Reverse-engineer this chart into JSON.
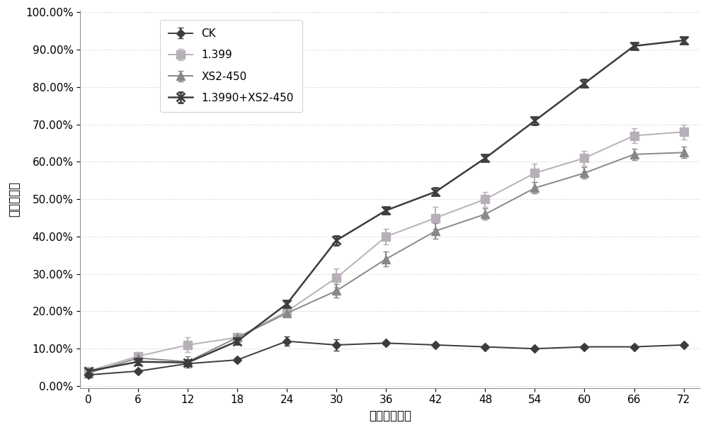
{
  "x": [
    0,
    6,
    12,
    18,
    24,
    30,
    36,
    42,
    48,
    54,
    60,
    66,
    72
  ],
  "CK": [
    0.03,
    0.04,
    0.06,
    0.07,
    0.12,
    0.11,
    0.115,
    0.11,
    0.105,
    0.1,
    0.105,
    0.105,
    0.11
  ],
  "CK_err": [
    0.005,
    0.004,
    0.005,
    0.005,
    0.012,
    0.015,
    0.005,
    0.004,
    0.004,
    0.004,
    0.004,
    0.004,
    0.004
  ],
  "s1399": [
    0.04,
    0.08,
    0.11,
    0.13,
    0.2,
    0.29,
    0.4,
    0.45,
    0.5,
    0.57,
    0.61,
    0.67,
    0.68
  ],
  "s1399_err": [
    0.005,
    0.01,
    0.02,
    0.01,
    0.01,
    0.025,
    0.02,
    0.03,
    0.02,
    0.025,
    0.02,
    0.02,
    0.02
  ],
  "XS2": [
    0.035,
    0.075,
    0.065,
    0.13,
    0.195,
    0.255,
    0.34,
    0.415,
    0.46,
    0.53,
    0.57,
    0.62,
    0.625
  ],
  "XS2_err": [
    0.005,
    0.01,
    0.015,
    0.01,
    0.01,
    0.018,
    0.02,
    0.02,
    0.015,
    0.015,
    0.015,
    0.015,
    0.015
  ],
  "combo": [
    0.04,
    0.065,
    0.063,
    0.12,
    0.22,
    0.39,
    0.47,
    0.52,
    0.61,
    0.71,
    0.81,
    0.91,
    0.925
  ],
  "combo_err": [
    0.005,
    0.008,
    0.008,
    0.008,
    0.01,
    0.012,
    0.01,
    0.01,
    0.01,
    0.01,
    0.01,
    0.01,
    0.01
  ],
  "color_CK": "#3c3c3c",
  "color_1399": "#b8b0b8",
  "color_XS2": "#888888",
  "color_combo": "#3c3c3c",
  "ylabel": "油脂降解率",
  "xlabel": "时间（小时）",
  "ylim": [
    -0.005,
    1.005
  ],
  "yticks": [
    0.0,
    0.1,
    0.2,
    0.3,
    0.4,
    0.5,
    0.6,
    0.7,
    0.8,
    0.9,
    1.0
  ],
  "ytick_labels": [
    "0.00%",
    "10.00%",
    "20.00%",
    "30.00%",
    "40.00%",
    "50.00%",
    "60.00%",
    "70.00%",
    "80.00%",
    "90.00%",
    "100.00%"
  ],
  "xticks": [
    0,
    6,
    12,
    18,
    24,
    30,
    36,
    42,
    48,
    54,
    60,
    66,
    72
  ],
  "legend_CK": "CK",
  "legend_1399": "1.399",
  "legend_XS2": "XS2-450",
  "legend_combo": "1.3990+XS2-450",
  "bg_color": "#ffffff",
  "grid_color": "#c8c8c8"
}
